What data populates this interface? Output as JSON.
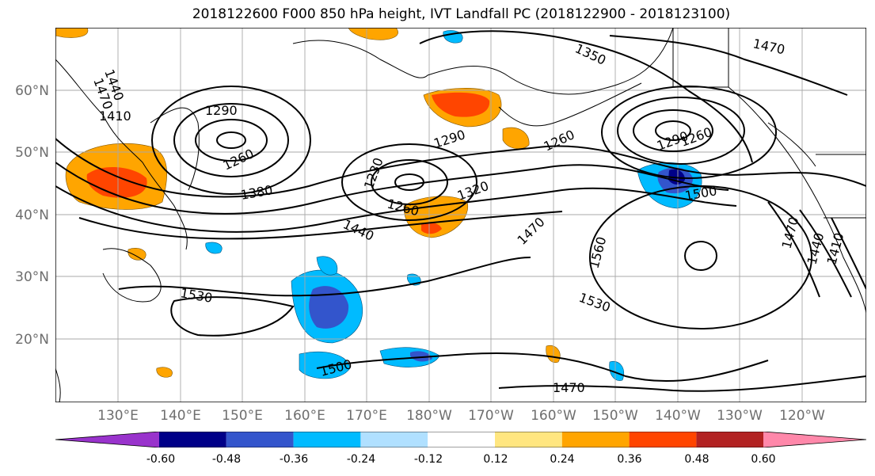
{
  "title": "2018122600 F000 850 hPa height, IVT Landfall PC (2018122900 - 2018123100)",
  "lat_labels": [
    "60°N",
    "50°N",
    "40°N",
    "30°N",
    "20°N"
  ],
  "lon_labels": [
    "130°E",
    "140°E",
    "150°E",
    "160°E",
    "170°E",
    "180°W",
    "170°W",
    "160°W",
    "150°W",
    "140°W",
    "130°W",
    "120°W"
  ],
  "contour_labels": [
    "1440",
    "1470",
    "1410",
    "1290",
    "1260",
    "1230",
    "1260",
    "1290",
    "1320",
    "1350",
    "1470",
    "1260",
    "1290",
    "1260",
    "1380",
    "1440",
    "1470",
    "1500",
    "1560",
    "1530",
    "1530",
    "1500",
    "1470",
    "1470",
    "1440",
    "1410"
  ],
  "colorbar": {
    "ticks": [
      "-0.60",
      "-0.48",
      "-0.36",
      "-0.24",
      "-0.12",
      "0.12",
      "0.24",
      "0.36",
      "0.48",
      "0.60"
    ],
    "colors": [
      "#9933cc",
      "#000088",
      "#3355cc",
      "#00bbff",
      "#b0e0ff",
      "#ffffff",
      "#ffe680",
      "#ffa500",
      "#ff4500",
      "#b22222",
      "#ff88aa"
    ]
  }
}
